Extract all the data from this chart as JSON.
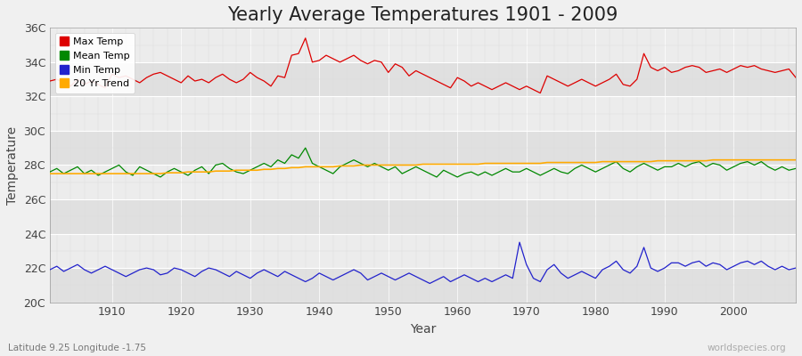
{
  "title": "Yearly Average Temperatures 1901 - 2009",
  "xlabel": "Year",
  "ylabel": "Temperature",
  "lat_lon_text": "Latitude 9.25 Longitude -1.75",
  "watermark": "worldspecies.org",
  "years": [
    1901,
    1902,
    1903,
    1904,
    1905,
    1906,
    1907,
    1908,
    1909,
    1910,
    1911,
    1912,
    1913,
    1914,
    1915,
    1916,
    1917,
    1918,
    1919,
    1920,
    1921,
    1922,
    1923,
    1924,
    1925,
    1926,
    1927,
    1928,
    1929,
    1930,
    1931,
    1932,
    1933,
    1934,
    1935,
    1936,
    1937,
    1938,
    1939,
    1940,
    1941,
    1942,
    1943,
    1944,
    1945,
    1946,
    1947,
    1948,
    1949,
    1950,
    1951,
    1952,
    1953,
    1954,
    1955,
    1956,
    1957,
    1958,
    1959,
    1960,
    1961,
    1962,
    1963,
    1964,
    1965,
    1966,
    1967,
    1968,
    1969,
    1970,
    1971,
    1972,
    1973,
    1974,
    1975,
    1976,
    1977,
    1978,
    1979,
    1980,
    1981,
    1982,
    1983,
    1984,
    1985,
    1986,
    1987,
    1988,
    1989,
    1990,
    1991,
    1992,
    1993,
    1994,
    1995,
    1996,
    1997,
    1998,
    1999,
    2000,
    2001,
    2002,
    2003,
    2004,
    2005,
    2006,
    2007,
    2008,
    2009
  ],
  "max_temp": [
    32.9,
    33.0,
    32.8,
    32.6,
    33.0,
    32.7,
    32.9,
    32.7,
    32.5,
    33.3,
    33.1,
    33.2,
    33.0,
    32.8,
    33.1,
    33.3,
    33.4,
    33.2,
    33.0,
    32.8,
    33.2,
    32.9,
    33.0,
    32.8,
    33.1,
    33.3,
    33.0,
    32.8,
    33.0,
    33.4,
    33.1,
    32.9,
    32.6,
    33.2,
    33.1,
    34.4,
    34.5,
    35.4,
    34.0,
    34.1,
    34.4,
    34.2,
    34.0,
    34.2,
    34.4,
    34.1,
    33.9,
    34.1,
    34.0,
    33.4,
    33.9,
    33.7,
    33.2,
    33.5,
    33.3,
    33.1,
    32.9,
    32.7,
    32.5,
    33.1,
    32.9,
    32.6,
    32.8,
    32.6,
    32.4,
    32.6,
    32.8,
    32.6,
    32.4,
    32.6,
    32.4,
    32.2,
    33.2,
    33.0,
    32.8,
    32.6,
    32.8,
    33.0,
    32.8,
    32.6,
    32.8,
    33.0,
    33.3,
    32.7,
    32.6,
    33.0,
    34.5,
    33.7,
    33.5,
    33.7,
    33.4,
    33.5,
    33.7,
    33.8,
    33.7,
    33.4,
    33.5,
    33.6,
    33.4,
    33.6,
    33.8,
    33.7,
    33.8,
    33.6,
    33.5,
    33.4,
    33.5,
    33.6,
    33.1
  ],
  "mean_temp": [
    27.6,
    27.8,
    27.5,
    27.7,
    27.9,
    27.5,
    27.7,
    27.4,
    27.6,
    27.8,
    28.0,
    27.6,
    27.4,
    27.9,
    27.7,
    27.5,
    27.3,
    27.6,
    27.8,
    27.6,
    27.4,
    27.7,
    27.9,
    27.5,
    28.0,
    28.1,
    27.8,
    27.6,
    27.5,
    27.7,
    27.9,
    28.1,
    27.9,
    28.3,
    28.1,
    28.6,
    28.4,
    29.0,
    28.1,
    27.9,
    27.7,
    27.5,
    27.9,
    28.1,
    28.3,
    28.1,
    27.9,
    28.1,
    27.9,
    27.7,
    27.9,
    27.5,
    27.7,
    27.9,
    27.7,
    27.5,
    27.3,
    27.7,
    27.5,
    27.3,
    27.5,
    27.6,
    27.4,
    27.6,
    27.4,
    27.6,
    27.8,
    27.6,
    27.6,
    27.8,
    27.6,
    27.4,
    27.6,
    27.8,
    27.6,
    27.5,
    27.8,
    28.0,
    27.8,
    27.6,
    27.8,
    28.0,
    28.2,
    27.8,
    27.6,
    27.9,
    28.1,
    27.9,
    27.7,
    27.9,
    27.9,
    28.1,
    27.9,
    28.1,
    28.2,
    27.9,
    28.1,
    28.0,
    27.7,
    27.9,
    28.1,
    28.2,
    28.0,
    28.2,
    27.9,
    27.7,
    27.9,
    27.7,
    27.8
  ],
  "min_temp": [
    21.9,
    22.1,
    21.8,
    22.0,
    22.2,
    21.9,
    21.7,
    21.9,
    22.1,
    21.9,
    21.7,
    21.5,
    21.7,
    21.9,
    22.0,
    21.9,
    21.6,
    21.7,
    22.0,
    21.9,
    21.7,
    21.5,
    21.8,
    22.0,
    21.9,
    21.7,
    21.5,
    21.8,
    21.6,
    21.4,
    21.7,
    21.9,
    21.7,
    21.5,
    21.8,
    21.6,
    21.4,
    21.2,
    21.4,
    21.7,
    21.5,
    21.3,
    21.5,
    21.7,
    21.9,
    21.7,
    21.3,
    21.5,
    21.7,
    21.5,
    21.3,
    21.5,
    21.7,
    21.5,
    21.3,
    21.1,
    21.3,
    21.5,
    21.2,
    21.4,
    21.6,
    21.4,
    21.2,
    21.4,
    21.2,
    21.4,
    21.6,
    21.4,
    23.5,
    22.2,
    21.4,
    21.2,
    21.9,
    22.2,
    21.7,
    21.4,
    21.6,
    21.8,
    21.6,
    21.4,
    21.9,
    22.1,
    22.4,
    21.9,
    21.7,
    22.1,
    23.2,
    22.0,
    21.8,
    22.0,
    22.3,
    22.3,
    22.1,
    22.3,
    22.4,
    22.1,
    22.3,
    22.2,
    21.9,
    22.1,
    22.3,
    22.4,
    22.2,
    22.4,
    22.1,
    21.9,
    22.1,
    21.9,
    22.0
  ],
  "trend_temp": [
    27.5,
    27.5,
    27.5,
    27.5,
    27.5,
    27.5,
    27.5,
    27.5,
    27.5,
    27.5,
    27.5,
    27.5,
    27.5,
    27.5,
    27.5,
    27.5,
    27.5,
    27.55,
    27.55,
    27.55,
    27.6,
    27.6,
    27.6,
    27.6,
    27.65,
    27.65,
    27.65,
    27.7,
    27.7,
    27.7,
    27.7,
    27.75,
    27.75,
    27.8,
    27.8,
    27.85,
    27.85,
    27.9,
    27.9,
    27.9,
    27.9,
    27.9,
    27.95,
    27.95,
    27.95,
    28.0,
    28.0,
    28.0,
    28.0,
    28.0,
    28.0,
    28.0,
    28.0,
    28.0,
    28.05,
    28.05,
    28.05,
    28.05,
    28.05,
    28.05,
    28.05,
    28.05,
    28.05,
    28.1,
    28.1,
    28.1,
    28.1,
    28.1,
    28.1,
    28.1,
    28.1,
    28.1,
    28.15,
    28.15,
    28.15,
    28.15,
    28.15,
    28.15,
    28.15,
    28.15,
    28.2,
    28.2,
    28.2,
    28.2,
    28.2,
    28.2,
    28.2,
    28.2,
    28.25,
    28.25,
    28.25,
    28.25,
    28.25,
    28.25,
    28.25,
    28.25,
    28.3,
    28.3,
    28.3,
    28.3,
    28.3,
    28.3,
    28.3,
    28.3,
    28.3,
    28.3,
    28.3,
    28.3,
    28.3
  ],
  "max_color": "#dd0000",
  "mean_color": "#008800",
  "min_color": "#2222cc",
  "trend_color": "#ffaa00",
  "bg_color": "#f0f0f0",
  "plot_bg_color": "#e8e8e8",
  "grid_major_color": "#ffffff",
  "grid_minor_color": "#dddddd",
  "ylim_min": 20,
  "ylim_max": 36,
  "yticks": [
    20,
    22,
    24,
    26,
    28,
    30,
    32,
    34,
    36
  ],
  "ytick_labels": [
    "20C",
    "22C",
    "24C",
    "26C",
    "28C",
    "30C",
    "32C",
    "34C",
    "36C"
  ],
  "xtick_step": 10,
  "line_width": 0.9,
  "title_fontsize": 15,
  "axis_label_fontsize": 10,
  "tick_fontsize": 9,
  "legend_fontsize": 8,
  "legend_marker": "s"
}
